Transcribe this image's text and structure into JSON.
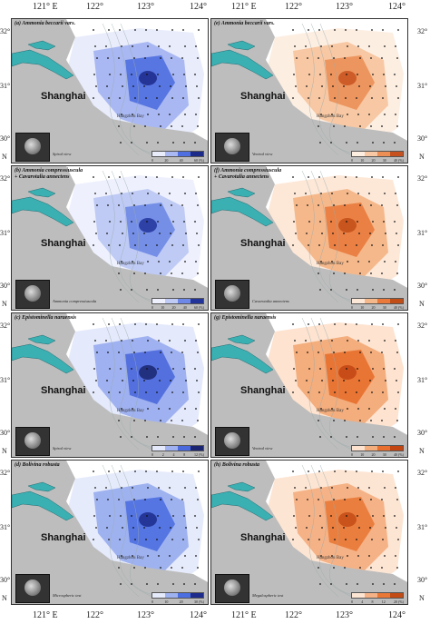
{
  "axes": {
    "lon_labels": [
      "121° E",
      "122°",
      "123°",
      "124°"
    ],
    "lat_labels": [
      "32°",
      "31°",
      "30°"
    ],
    "lat_unit": "N"
  },
  "labels": {
    "city": "Shanghai",
    "bay": "Hangzhou Bay"
  },
  "panels": [
    {
      "id": "a",
      "title": "(a)  Ammonia beccarii vars.",
      "title2": "",
      "inset_caption": "Spiral view",
      "legend": {
        "ticks": [
          "0",
          "20",
          "40",
          "60 (%)"
        ],
        "colors": [
          "#e8ecfb",
          "#a9b8f2",
          "#4f6fe0",
          "#1c2a8a"
        ]
      },
      "color": "#4a6fe0"
    },
    {
      "id": "e",
      "title": "(e)  Ammonia beccarii vars.",
      "title2": "",
      "inset_caption": "Ventral view",
      "legend": {
        "ticks": [
          "0",
          "10",
          "20",
          "30",
          "40 (%)"
        ],
        "colors": [
          "#fdeee2",
          "#f7c8a3",
          "#eb8f57",
          "#c7521f"
        ]
      },
      "color": "#eb8f57"
    },
    {
      "id": "b",
      "title": "(b)  Ammonia compressiuscula",
      "title2": "   + Cavarotalia annectens",
      "inset_caption": "Ammonia compressiuscula",
      "legend": {
        "ticks": [
          "0",
          "10",
          "20",
          "40",
          "60 (%)"
        ],
        "colors": [
          "#eef1fd",
          "#bfcbf5",
          "#6d88e6",
          "#22349a"
        ]
      },
      "color": "#6d88e6"
    },
    {
      "id": "f",
      "title": "(f)  Ammonia compressiuscula",
      "title2": "   + Cavarotalia annectens",
      "inset_caption": "Cavarotalia annectens",
      "legend": {
        "ticks": [
          "0",
          "10",
          "20",
          "30",
          "40 (%)"
        ],
        "colors": [
          "#fde8d8",
          "#f5b88b",
          "#e97a3c",
          "#c14e16"
        ]
      },
      "color": "#e97a3c"
    },
    {
      "id": "c",
      "title": "(c)  Epistominella naraensis",
      "title2": "",
      "inset_caption": "Spiral view",
      "legend": {
        "ticks": [
          "0",
          "2",
          "4",
          "8",
          "12 (%)"
        ],
        "colors": [
          "#e4e9fb",
          "#9fb1f0",
          "#4a69dc",
          "#1a2470"
        ]
      },
      "color": "#4a69dc"
    },
    {
      "id": "g",
      "title": "(g)  Epistominella naraensis",
      "title2": "",
      "inset_caption": "Ventral view",
      "legend": {
        "ticks": [
          "0",
          "10",
          "20",
          "30",
          "40 (%)"
        ],
        "colors": [
          "#fde3d0",
          "#f4ad7c",
          "#e86f2e",
          "#c24512"
        ]
      },
      "color": "#e86f2e"
    },
    {
      "id": "d",
      "title": "(d)  Bolivina robusta",
      "title2": "",
      "inset_caption": "Microspheric test",
      "legend": {
        "ticks": [
          "0",
          "10",
          "20",
          "30 (%)"
        ],
        "colors": [
          "#e6ebfb",
          "#9fb2f0",
          "#4b6ee0",
          "#1d2b8c"
        ]
      },
      "color": "#4b6ee0"
    },
    {
      "id": "h",
      "title": "(h)  Bolivina robusta",
      "title2": "",
      "inset_caption": "Megalospheric test",
      "legend": {
        "ticks": [
          "0",
          "4",
          "8",
          "12",
          "20 (%)"
        ],
        "colors": [
          "#fde5d3",
          "#f5b286",
          "#e97836",
          "#c34b15"
        ]
      },
      "color": "#e97836"
    }
  ]
}
